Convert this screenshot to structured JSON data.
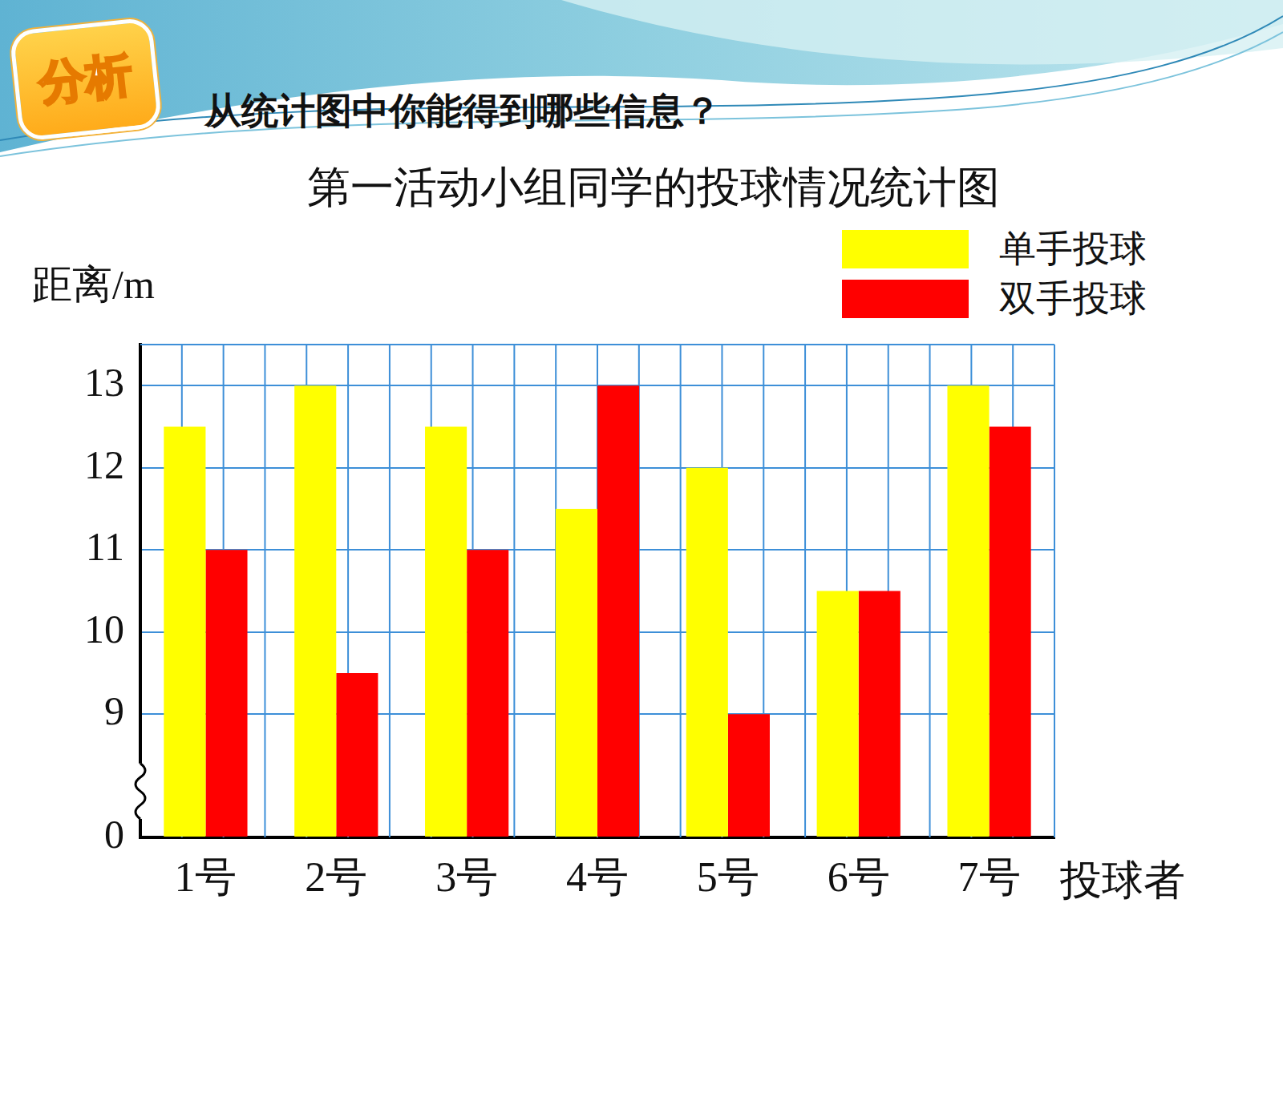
{
  "header": {
    "badge": "分析",
    "question": "从统计图中你能得到哪些信息？"
  },
  "chart_data": {
    "type": "bar",
    "title": "第一活动小组同学的投球情况统计图",
    "x_label": "投球者",
    "y_label": "距离/m",
    "categories": [
      "1号",
      "2号",
      "3号",
      "4号",
      "5号",
      "6号",
      "7号"
    ],
    "series": [
      {
        "name": "单手投球",
        "color": "#ffff00",
        "values": [
          12.5,
          13,
          12.5,
          11.5,
          12,
          10.5,
          13
        ]
      },
      {
        "name": "双手投球",
        "color": "#ff0000",
        "values": [
          11,
          9.5,
          11,
          13,
          9,
          10.5,
          12.5
        ]
      }
    ],
    "ylim": [
      0,
      13.5
    ],
    "yticks": [
      0,
      9,
      10,
      11,
      12,
      13
    ],
    "grid": true,
    "legend": "top-right"
  }
}
